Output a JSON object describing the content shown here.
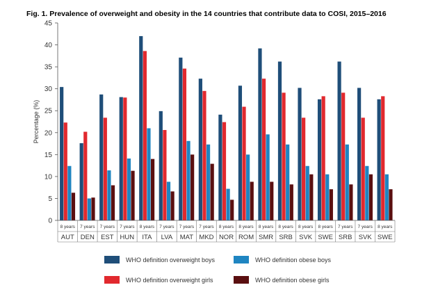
{
  "chart_data": {
    "type": "bar",
    "title": "Fig. 1. Prevalence of overweight and obesity in the 14 countries that contribute data to COSI, 2015–2016",
    "xlabel": "",
    "ylabel": "Percentage (%)",
    "ylim": [
      0,
      45
    ],
    "yticks": [
      "0",
      "5",
      "10",
      "15",
      "20",
      "25",
      "30",
      "35",
      "40",
      "45"
    ],
    "grid": false,
    "legend_position": "bottom",
    "categories": [
      {
        "age": "8 years",
        "country": "AUT"
      },
      {
        "age": "7 years",
        "country": "DEN"
      },
      {
        "age": "7 years",
        "country": "EST"
      },
      {
        "age": "7 years",
        "country": "HUN"
      },
      {
        "age": "8 years",
        "country": "ITA"
      },
      {
        "age": "7 years",
        "country": "LVA"
      },
      {
        "age": "7 years",
        "country": "MAT"
      },
      {
        "age": "7 years",
        "country": "MKD"
      },
      {
        "age": "8 years",
        "country": "NOR"
      },
      {
        "age": "8 years",
        "country": "ROM"
      },
      {
        "age": "8 years",
        "country": "SMR"
      },
      {
        "age": "8 years",
        "country": "SRB"
      },
      {
        "age": "8 years",
        "country": "SVK"
      },
      {
        "age": "8 years",
        "country": "SWE"
      },
      {
        "age": "7 years",
        "country": "SRB"
      },
      {
        "age": "7 years",
        "country": "SVK"
      },
      {
        "age": "8 years",
        "country": "SWE"
      }
    ],
    "series": [
      {
        "name": "WHO definition overweight boys",
        "color": "#1f4e79",
        "values": [
          30.4,
          17.6,
          28.7,
          28.1,
          42.0,
          24.9,
          37.1,
          32.3,
          24.1,
          30.7,
          39.2,
          36.2,
          30.2,
          27.6,
          36.2,
          30.2,
          27.6
        ]
      },
      {
        "name": "WHO definition overweight girls",
        "color": "#e1292e",
        "values": [
          22.3,
          20.2,
          23.4,
          28.0,
          38.6,
          20.6,
          34.6,
          29.5,
          22.4,
          25.9,
          32.3,
          29.1,
          23.4,
          28.3,
          29.1,
          23.4,
          28.3
        ]
      },
      {
        "name": "WHO definition obese boys",
        "color": "#1f85c1",
        "values": [
          12.4,
          5.0,
          11.4,
          14.1,
          21.0,
          8.8,
          18.1,
          17.3,
          7.2,
          15.0,
          19.6,
          17.3,
          12.4,
          10.5,
          17.3,
          12.4,
          10.5
        ]
      },
      {
        "name": "WHO definition obese girls",
        "color": "#5a0f10",
        "values": [
          6.3,
          5.2,
          8.0,
          11.3,
          14.0,
          6.6,
          15.0,
          12.9,
          4.7,
          8.8,
          8.8,
          8.2,
          10.5,
          7.1,
          8.2,
          10.5,
          7.1
        ]
      }
    ],
    "legend": [
      {
        "name": "WHO definition overweight boys",
        "color": "#1f4e79"
      },
      {
        "name": "WHO definition obese boys",
        "color": "#1f85c1"
      },
      {
        "name": "WHO definition overweight girls",
        "color": "#e1292e"
      },
      {
        "name": "WHO definition obese girls",
        "color": "#5a0f10"
      }
    ]
  }
}
